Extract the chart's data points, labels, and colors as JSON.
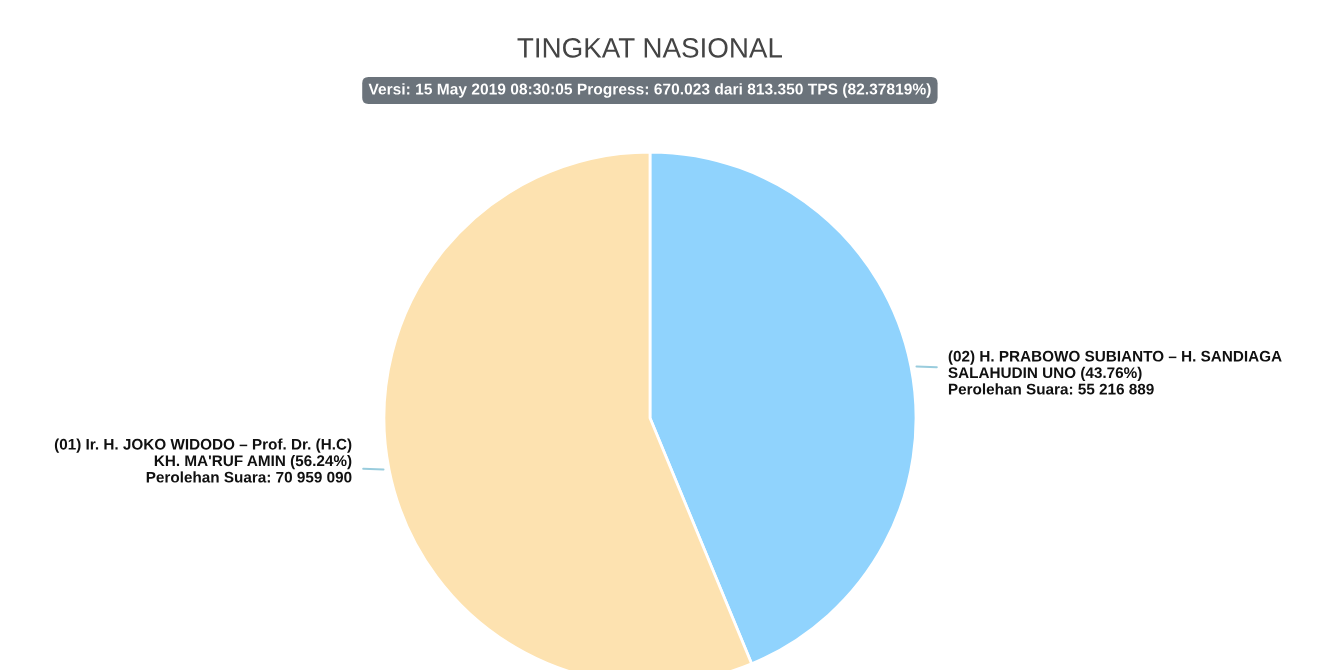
{
  "chart_data": {
    "type": "pie",
    "title": "TINGKAT NASIONAL",
    "subtitle": "Versi: 15 May 2019 08:30:05 Progress: 670.023 dari 813.350 TPS (82.37819%)",
    "categories": [
      "(02) H. PRABOWO SUBIANTO – H. SANDIAGA\nSALAHUDIN UNO (43.76%)",
      "(01) Ir. H. JOKO WIDODO – Prof. Dr. (H.C)\nKH. MA'RUF AMIN (56.24%)"
    ],
    "values": [
      55216889,
      70959090
    ],
    "value_labels": [
      "Perolehan Suara: 55 216 889",
      "Perolehan Suara: 70 959 090"
    ],
    "colors": [
      "#90d3fd",
      "#fde2b0"
    ],
    "legend": false
  }
}
